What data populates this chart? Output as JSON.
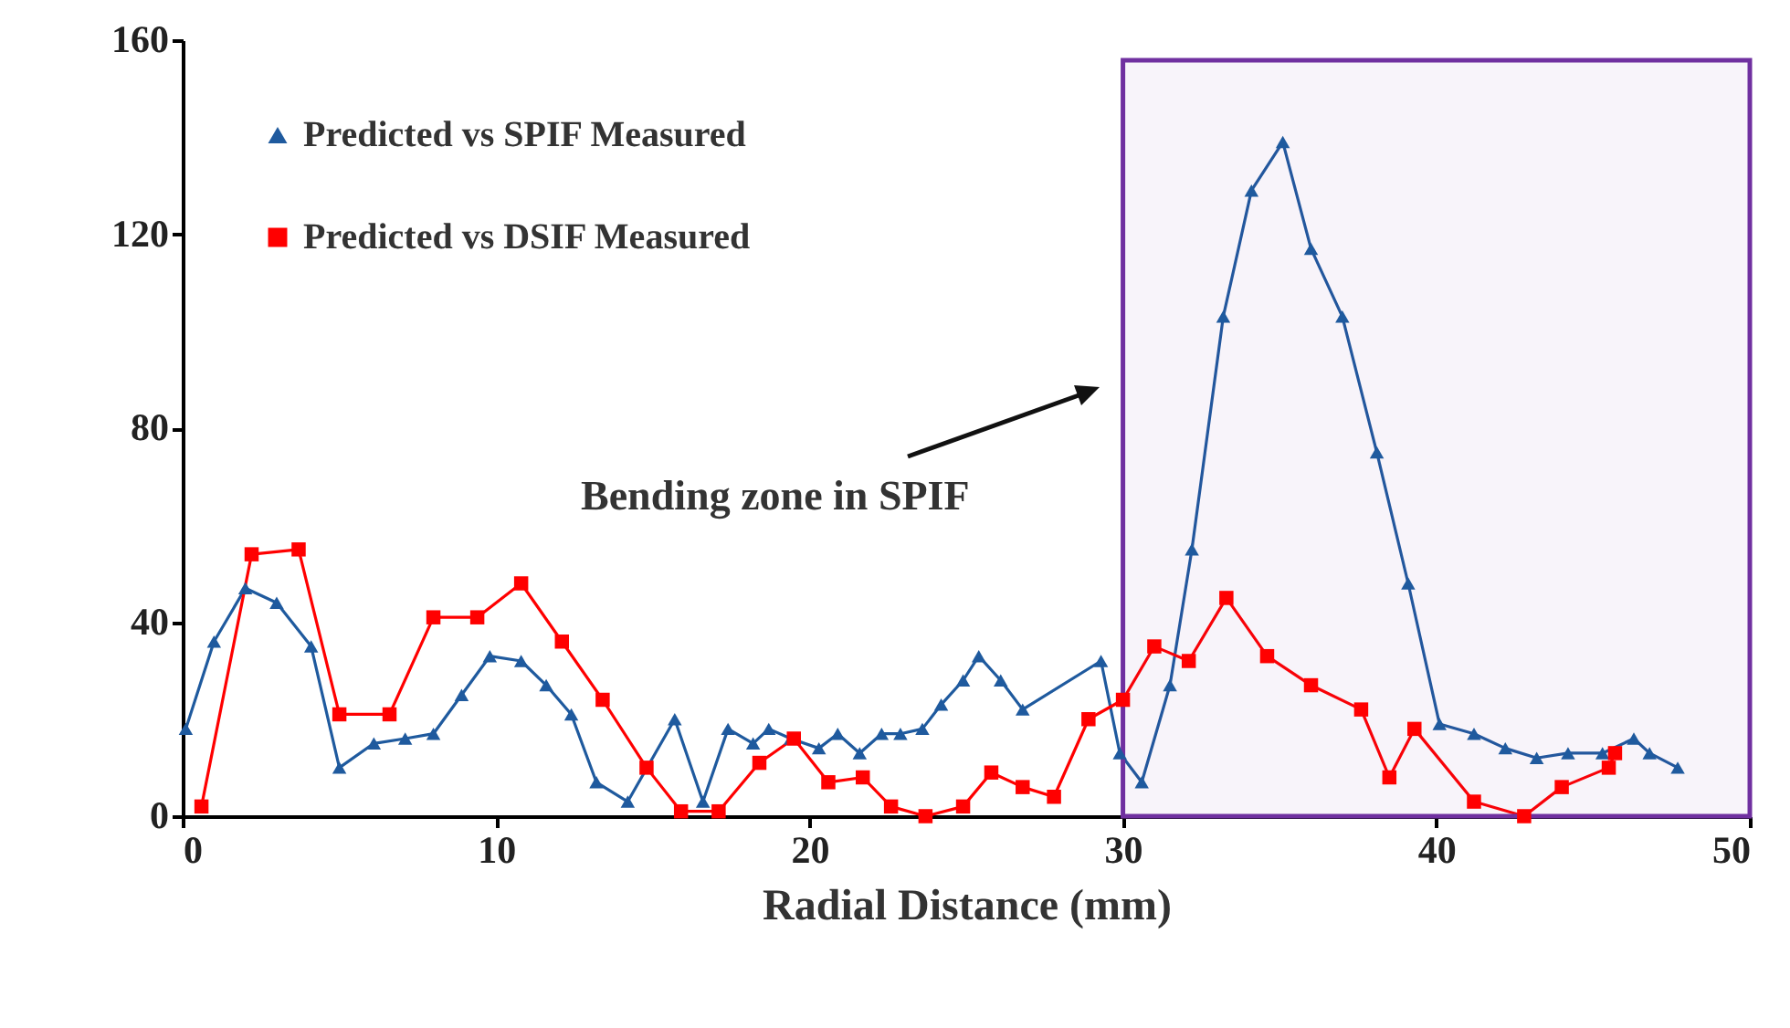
{
  "chart_data": {
    "type": "line",
    "xlabel": "Radial Distance (mm)",
    "xlim": [
      0,
      50
    ],
    "xticks": [
      0,
      10,
      20,
      30,
      40,
      50
    ],
    "ylim": [
      0,
      160
    ],
    "yticks": [
      0,
      40,
      80,
      120,
      160
    ],
    "grid": false,
    "legend": "top left",
    "line_style": "solid",
    "annotations": [
      "Bending zone in SPIF"
    ],
    "bands": [
      {
        "axis": "x",
        "from": 30,
        "to": 50,
        "color": "#7030a0"
      }
    ],
    "series": [
      {
        "name": "Predicted vs SPIF Measured",
        "color": "#1f5a9e",
        "marker": "triangle",
        "x": [
          0.1,
          1.0,
          2.0,
          3.0,
          4.1,
          5.0,
          6.1,
          7.1,
          8.0,
          8.9,
          9.8,
          10.8,
          11.6,
          12.4,
          13.2,
          14.2,
          15.7,
          16.6,
          17.4,
          18.2,
          18.7,
          19.4,
          20.3,
          20.9,
          21.6,
          22.3,
          22.9,
          23.6,
          24.2,
          24.9,
          25.4,
          26.1,
          26.8,
          29.3,
          29.9,
          30.6,
          31.5,
          32.2,
          33.2,
          34.1,
          35.1,
          36.0,
          37.0,
          38.1,
          39.1,
          40.1,
          41.2,
          42.2,
          43.2,
          44.2,
          45.3,
          46.3,
          46.8,
          47.7
        ],
        "values": [
          18,
          36,
          47,
          44,
          35,
          10,
          15,
          16,
          17,
          25,
          33,
          32,
          27,
          21,
          7,
          3,
          20,
          3,
          18,
          15,
          18,
          16,
          14,
          17,
          13,
          17,
          17,
          18,
          23,
          28,
          33,
          28,
          22,
          32,
          13,
          7,
          27,
          55,
          103,
          129,
          139,
          117,
          103,
          75,
          48,
          19,
          17,
          14,
          12,
          13,
          13,
          16,
          13,
          10
        ]
      },
      {
        "name": "Predicted vs DSIF Measured",
        "color": "#ff0000",
        "marker": "square",
        "x": [
          0.6,
          2.2,
          3.7,
          5.0,
          6.6,
          8.0,
          9.4,
          10.8,
          12.1,
          13.4,
          14.8,
          15.9,
          17.1,
          18.4,
          19.5,
          20.6,
          21.7,
          22.6,
          23.7,
          24.9,
          25.8,
          26.8,
          27.8,
          28.9,
          30.0,
          31.0,
          32.1,
          33.3,
          34.6,
          36.0,
          37.6,
          38.5,
          39.3,
          41.2,
          42.8,
          44.0,
          45.5,
          45.7
        ],
        "values": [
          2,
          54,
          55,
          21,
          21,
          41,
          41,
          48,
          36,
          24,
          10,
          1,
          1,
          11,
          16,
          7,
          8,
          2,
          0,
          2,
          9,
          6,
          4,
          20,
          24,
          35,
          32,
          45,
          33,
          27,
          22,
          8,
          18,
          3,
          0,
          6,
          10,
          13
        ]
      }
    ]
  }
}
